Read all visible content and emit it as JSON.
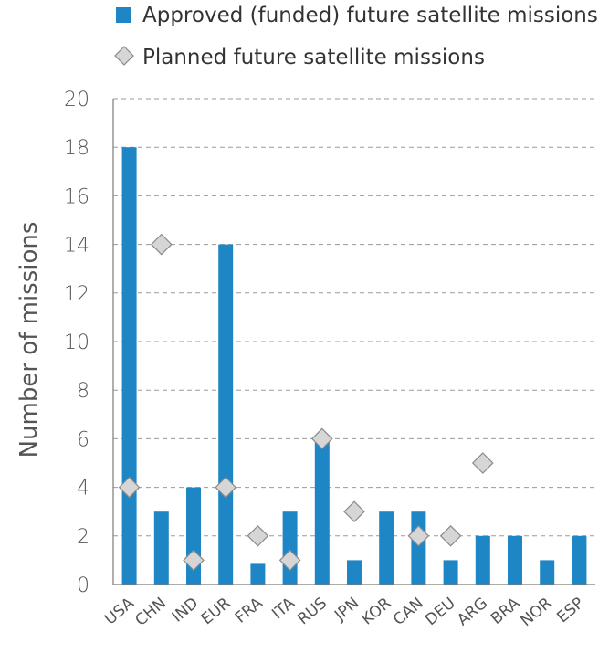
{
  "chart_data": {
    "type": "bar",
    "title": "",
    "xlabel": "",
    "ylabel": "Number of missions",
    "ylim": [
      0,
      20
    ],
    "yticks": [
      0,
      2,
      4,
      6,
      8,
      10,
      12,
      14,
      16,
      18,
      20
    ],
    "grid": true,
    "legend_position": "top",
    "categories": [
      "USA",
      "CHN",
      "IND",
      "EUR",
      "FRA",
      "ITA",
      "RUS",
      "JPN",
      "KOR",
      "CAN",
      "DEU",
      "ARG",
      "BRA",
      "NOR",
      "ESP"
    ],
    "series": [
      {
        "name": "Approved (funded) future satellite missions",
        "kind": "bar",
        "color": "#1f86c6",
        "values": [
          18,
          3,
          4,
          14,
          0.85,
          3,
          6,
          1,
          3,
          3,
          1,
          2,
          2,
          1,
          2
        ]
      },
      {
        "name": "Planned future satellite missions",
        "kind": "diamond",
        "color": "#c8c8c8",
        "values": [
          4,
          14,
          1,
          4,
          2,
          1,
          6,
          3,
          null,
          2,
          2,
          5,
          null,
          null,
          null
        ]
      }
    ]
  }
}
